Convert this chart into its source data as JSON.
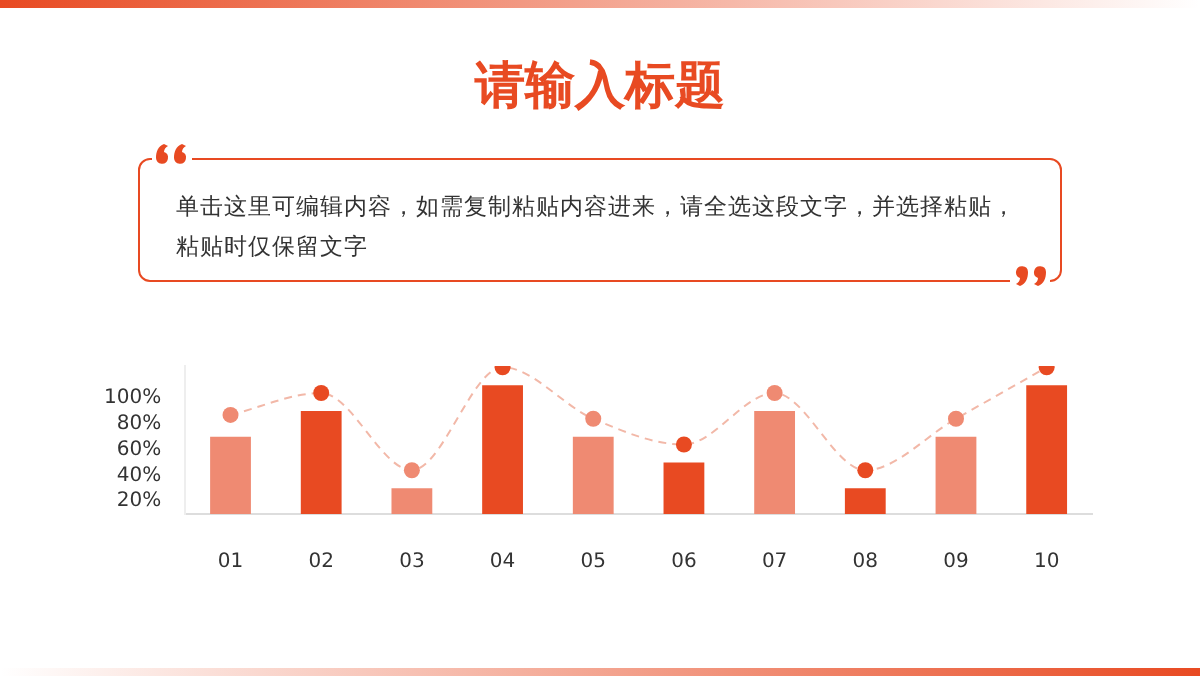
{
  "chart_data": {
    "type": "bar",
    "title": "请输入标题",
    "subtitle": "单击这里可编辑内容，如需复制粘贴内容进来，请全选这段文字，并选择粘贴，粘贴时仅保留文字",
    "categories": [
      "01",
      "02",
      "03",
      "04",
      "05",
      "06",
      "07",
      "08",
      "09",
      "10"
    ],
    "series": [
      {
        "colors": [
          "#ef8a72",
          "#e84a22",
          "#ef8a72",
          "#e84a22",
          "#ef8a72",
          "#e84a22",
          "#ef8a72",
          "#e84a22",
          "#ef8a72",
          "#e84a22"
        ],
        "values": [
          70,
          90,
          30,
          110,
          70,
          50,
          90,
          30,
          70,
          110
        ]
      },
      {
        "type": "line",
        "color": "#f2b8a8",
        "colors": [
          "#ef8a72",
          "#e84a22",
          "#ef8a72",
          "#e84a22",
          "#ef8a72",
          "#e84a22",
          "#ef8a72",
          "#e84a22",
          "#ef8a72",
          "#e84a22"
        ],
        "values": [
          87,
          104,
          44,
          124,
          84,
          64,
          104,
          44,
          84,
          124
        ],
        "marker": "circle",
        "line_style": "dashed"
      }
    ],
    "ylim": [
      10,
      125
    ],
    "yticks": [
      {
        "value": 20,
        "label": "20%"
      },
      {
        "value": 40,
        "label": "40%"
      },
      {
        "value": 60,
        "label": "60%"
      },
      {
        "value": 80,
        "label": "80%"
      },
      {
        "value": 100,
        "label": "100%"
      }
    ],
    "grid": false,
    "legend": false
  }
}
